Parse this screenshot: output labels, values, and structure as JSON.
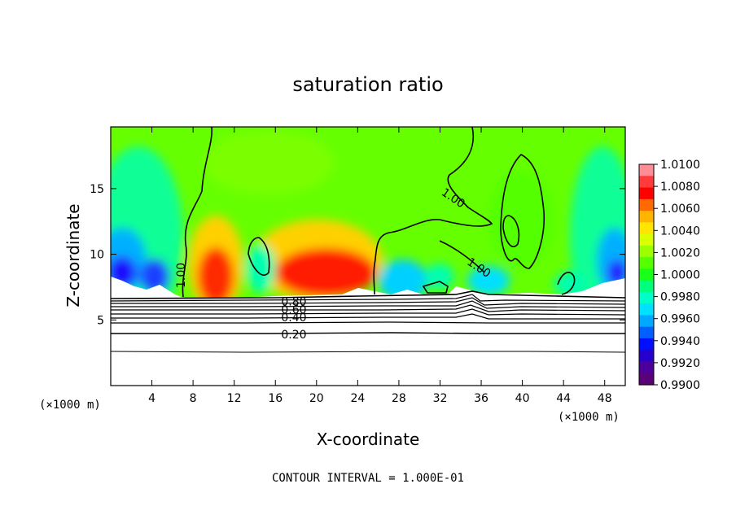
{
  "chart_data": {
    "type": "heatmap",
    "title": "saturation ratio",
    "xlabel": "X-coordinate",
    "ylabel": "Z-coordinate",
    "x_unit": "(×1000 m)",
    "footer": "CONTOUR INTERVAL = 1.000E-01",
    "xlim": [
      0,
      50
    ],
    "ylim": [
      0,
      19.7
    ],
    "x_ticks": [
      4,
      8,
      12,
      16,
      20,
      24,
      28,
      32,
      36,
      40,
      44,
      48
    ],
    "y_ticks": [
      5,
      10,
      15
    ],
    "colorbar": {
      "min": 0.99,
      "max": 1.01,
      "ticks": [
        "1.0100",
        "1.0080",
        "1.0060",
        "1.0040",
        "1.0020",
        "1.0000",
        "0.9980",
        "0.9960",
        "0.9940",
        "0.9920",
        "0.9900"
      ],
      "colors": [
        "#ff8c96",
        "#ff3a3a",
        "#ff0000",
        "#ff6a00",
        "#ffb400",
        "#ffe600",
        "#d9ff00",
        "#9cff00",
        "#55ff00",
        "#18ff18",
        "#00ff7a",
        "#00ffc8",
        "#00e0ff",
        "#00a8ff",
        "#0060ff",
        "#0010ff",
        "#2600cc",
        "#4c0099",
        "#5a0078"
      ]
    },
    "contour_labels": [
      {
        "text": "1.00",
        "x": 6.8,
        "y": 8.4,
        "rot": -90
      },
      {
        "text": "1.00",
        "x": 33.3,
        "y": 14.3,
        "rot": 34
      },
      {
        "text": "1.00",
        "x": 35.8,
        "y": 9.0,
        "rot": 34
      },
      {
        "text": "0.80",
        "x": 17.8,
        "y": 6.4,
        "rot": 0
      },
      {
        "text": "0.60",
        "x": 17.8,
        "y": 5.8,
        "rot": 0
      },
      {
        "text": "0.40",
        "x": 17.8,
        "y": 5.2,
        "rot": 0
      },
      {
        "text": "0.20",
        "x": 17.8,
        "y": 3.9,
        "rot": 0
      }
    ]
  }
}
